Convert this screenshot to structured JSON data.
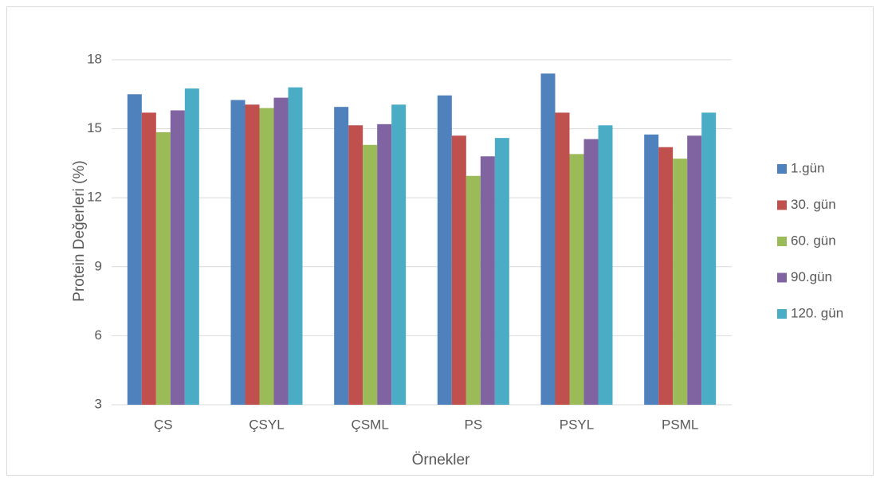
{
  "chart_data": {
    "type": "bar",
    "x_label": "Örnekler",
    "y_label": "Protein Değerleri (%)",
    "categories": [
      "ÇS",
      "ÇSYL",
      "ÇSML",
      "PS",
      "PSYL",
      "PSML"
    ],
    "series": [
      {
        "name": "1.gün",
        "color": "#4f81bd",
        "values": [
          16.5,
          16.25,
          15.95,
          16.45,
          17.4,
          14.75
        ]
      },
      {
        "name": "30. gün",
        "color": "#c0504d",
        "values": [
          15.7,
          16.05,
          15.15,
          14.7,
          15.7,
          14.2
        ]
      },
      {
        "name": "60. gün",
        "color": "#9bbb59",
        "values": [
          14.85,
          15.9,
          14.3,
          12.95,
          13.9,
          13.7
        ]
      },
      {
        "name": "90.gün",
        "color": "#8064a2",
        "values": [
          15.8,
          16.35,
          15.2,
          13.8,
          14.55,
          14.7
        ]
      },
      {
        "name": "120. gün",
        "color": "#4bacc6",
        "values": [
          16.75,
          16.8,
          16.05,
          14.6,
          15.15,
          15.7
        ]
      }
    ],
    "ylim": [
      3,
      18
    ],
    "yticks": [
      3,
      6,
      9,
      12,
      15,
      18
    ],
    "grid": true,
    "legend": "right"
  }
}
